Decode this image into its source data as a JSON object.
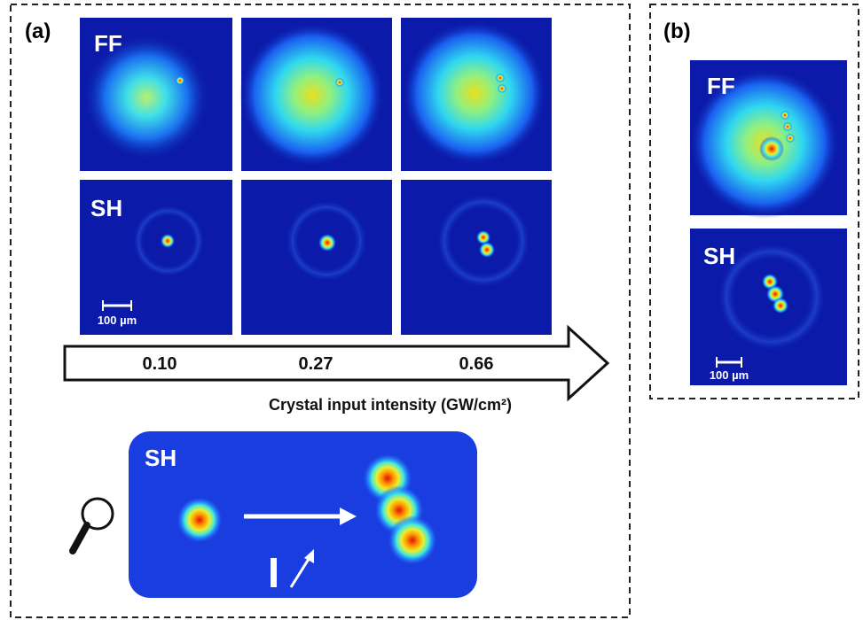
{
  "panel_a": {
    "label": "(a)",
    "rows": [
      {
        "label": "FF"
      },
      {
        "label": "SH"
      }
    ],
    "scale_bar": "100 µm",
    "intensities": [
      "0.10",
      "0.27",
      "0.66"
    ],
    "axis_label": "Crystal input intensity (GW/cm²)",
    "zoom": {
      "label": "SH"
    }
  },
  "panel_b": {
    "label": "(b)",
    "rows": [
      {
        "label": "FF"
      },
      {
        "label": "SH"
      }
    ],
    "scale_bar": "100 µm"
  }
}
